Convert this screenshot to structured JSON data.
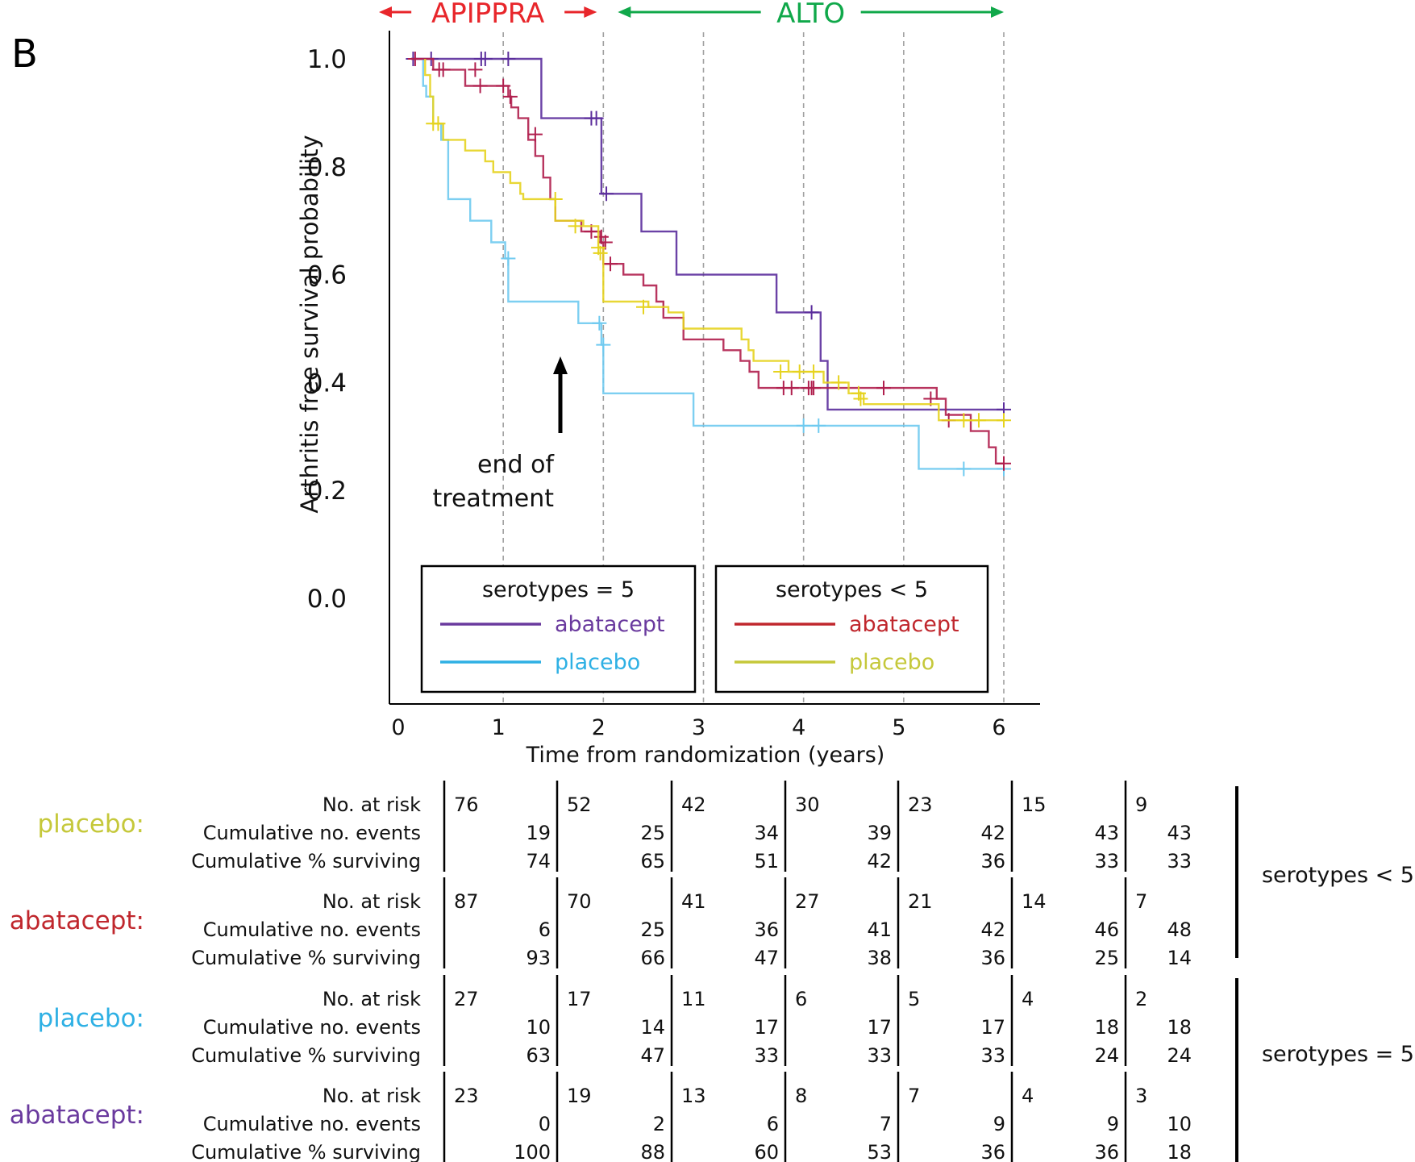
{
  "panel_label": "B",
  "study_spans": [
    {
      "label": "APIPPRA",
      "color": "#e8262b",
      "from": 0,
      "to": 2
    },
    {
      "label": "ALTO",
      "color": "#10a84a",
      "from": 2,
      "to": 6
    }
  ],
  "annotation": {
    "lines": [
      "end of",
      "treatment"
    ],
    "x": 1,
    "arrow_to_y": 0.52
  },
  "legends": [
    {
      "title": "serotypes = 5",
      "entries": [
        {
          "label": "abatacept",
          "color": "#6a3a9e"
        },
        {
          "label": "placebo",
          "color": "#2eb0e4"
        }
      ]
    },
    {
      "title": "serotypes < 5",
      "entries": [
        {
          "label": "abatacept",
          "color": "#c0272d"
        },
        {
          "label": "placebo",
          "color": "#c5c83a"
        }
      ]
    }
  ],
  "chart_data": {
    "type": "line",
    "subtype": "kaplan-meier-step",
    "title": "",
    "xlabel": "Time from randomization (years)",
    "ylabel": "Arthritis free survival probability",
    "xlim": [
      0,
      6
    ],
    "ylim": [
      0,
      1
    ],
    "xticks": [
      "0",
      "1",
      "2",
      "3",
      "4",
      "5",
      "6"
    ],
    "yticks": [
      "0.0",
      "0.2",
      "0.4",
      "0.6",
      "0.8",
      "1.0"
    ],
    "vertical_dashed_lines_at": [
      1,
      2,
      3,
      4,
      5,
      6
    ],
    "grid": false,
    "series": [
      {
        "name": "serotypes = 5 abatacept",
        "color": "#5b2d9c",
        "steps": [
          [
            0.08,
            1.0
          ],
          [
            1.38,
            1.0
          ],
          [
            1.38,
            0.89
          ],
          [
            1.98,
            0.89
          ],
          [
            1.98,
            0.75
          ],
          [
            2.38,
            0.75
          ],
          [
            2.38,
            0.68
          ],
          [
            2.73,
            0.68
          ],
          [
            2.73,
            0.6
          ],
          [
            3.73,
            0.6
          ],
          [
            3.73,
            0.53
          ],
          [
            4.17,
            0.53
          ],
          [
            4.17,
            0.44
          ],
          [
            4.24,
            0.44
          ],
          [
            4.24,
            0.35
          ],
          [
            6.0,
            0.35
          ]
        ],
        "censor": [
          [
            0.1,
            1.0
          ],
          [
            0.28,
            1.0
          ],
          [
            0.78,
            1.0
          ],
          [
            0.82,
            1.0
          ],
          [
            1.05,
            1.0
          ],
          [
            1.88,
            0.89
          ],
          [
            1.93,
            0.89
          ],
          [
            2.03,
            0.75
          ],
          [
            4.08,
            0.53
          ],
          [
            6.0,
            0.35
          ]
        ]
      },
      {
        "name": "serotypes = 5 placebo",
        "color": "#6fcaf0",
        "steps": [
          [
            0.2,
            1.0
          ],
          [
            0.2,
            0.95
          ],
          [
            0.23,
            0.95
          ],
          [
            0.23,
            0.93
          ],
          [
            0.3,
            0.93
          ],
          [
            0.3,
            0.88
          ],
          [
            0.38,
            0.88
          ],
          [
            0.38,
            0.85
          ],
          [
            0.45,
            0.85
          ],
          [
            0.45,
            0.74
          ],
          [
            0.67,
            0.74
          ],
          [
            0.67,
            0.7
          ],
          [
            0.88,
            0.7
          ],
          [
            0.88,
            0.66
          ],
          [
            1.02,
            0.66
          ],
          [
            1.02,
            0.63
          ],
          [
            1.05,
            0.63
          ],
          [
            1.05,
            0.55
          ],
          [
            1.75,
            0.55
          ],
          [
            1.75,
            0.51
          ],
          [
            1.98,
            0.51
          ],
          [
            1.98,
            0.47
          ],
          [
            2.0,
            0.47
          ],
          [
            2.0,
            0.38
          ],
          [
            2.9,
            0.38
          ],
          [
            2.9,
            0.32
          ],
          [
            5.15,
            0.32
          ],
          [
            5.15,
            0.24
          ],
          [
            6.0,
            0.24
          ]
        ],
        "censor": [
          [
            1.05,
            0.63
          ],
          [
            1.96,
            0.51
          ],
          [
            2.0,
            0.47
          ],
          [
            4.0,
            0.32
          ],
          [
            4.15,
            0.32
          ],
          [
            5.6,
            0.24
          ],
          [
            6.0,
            0.24
          ]
        ]
      },
      {
        "name": "serotypes < 5 abatacept",
        "color": "#b01f4e",
        "steps": [
          [
            0.08,
            1.0
          ],
          [
            0.3,
            1.0
          ],
          [
            0.3,
            0.98
          ],
          [
            0.62,
            0.98
          ],
          [
            0.62,
            0.95
          ],
          [
            1.05,
            0.95
          ],
          [
            1.05,
            0.93
          ],
          [
            1.08,
            0.93
          ],
          [
            1.08,
            0.91
          ],
          [
            1.15,
            0.91
          ],
          [
            1.15,
            0.89
          ],
          [
            1.25,
            0.89
          ],
          [
            1.25,
            0.85
          ],
          [
            1.32,
            0.85
          ],
          [
            1.32,
            0.82
          ],
          [
            1.4,
            0.82
          ],
          [
            1.4,
            0.78
          ],
          [
            1.47,
            0.78
          ],
          [
            1.47,
            0.74
          ],
          [
            1.52,
            0.74
          ],
          [
            1.52,
            0.7
          ],
          [
            1.78,
            0.7
          ],
          [
            1.78,
            0.68
          ],
          [
            1.97,
            0.68
          ],
          [
            1.97,
            0.66
          ],
          [
            2.0,
            0.66
          ],
          [
            2.0,
            0.62
          ],
          [
            2.2,
            0.62
          ],
          [
            2.2,
            0.6
          ],
          [
            2.4,
            0.6
          ],
          [
            2.4,
            0.58
          ],
          [
            2.53,
            0.58
          ],
          [
            2.53,
            0.55
          ],
          [
            2.6,
            0.55
          ],
          [
            2.6,
            0.52
          ],
          [
            2.8,
            0.52
          ],
          [
            2.8,
            0.48
          ],
          [
            3.2,
            0.48
          ],
          [
            3.2,
            0.46
          ],
          [
            3.37,
            0.46
          ],
          [
            3.37,
            0.44
          ],
          [
            3.46,
            0.44
          ],
          [
            3.46,
            0.42
          ],
          [
            3.55,
            0.42
          ],
          [
            3.55,
            0.39
          ],
          [
            5.33,
            0.39
          ],
          [
            5.33,
            0.37
          ],
          [
            5.42,
            0.37
          ],
          [
            5.42,
            0.34
          ],
          [
            5.67,
            0.34
          ],
          [
            5.67,
            0.31
          ],
          [
            5.85,
            0.31
          ],
          [
            5.85,
            0.28
          ],
          [
            5.92,
            0.28
          ],
          [
            5.92,
            0.25
          ],
          [
            6.0,
            0.25
          ]
        ],
        "censor": [
          [
            0.12,
            1.0
          ],
          [
            0.36,
            0.98
          ],
          [
            0.4,
            0.98
          ],
          [
            0.72,
            0.98
          ],
          [
            0.77,
            0.95
          ],
          [
            1.0,
            0.95
          ],
          [
            1.07,
            0.93
          ],
          [
            1.32,
            0.86
          ],
          [
            1.88,
            0.68
          ],
          [
            1.98,
            0.67
          ],
          [
            2.02,
            0.66
          ],
          [
            2.07,
            0.62
          ],
          [
            3.8,
            0.39
          ],
          [
            3.88,
            0.39
          ],
          [
            4.05,
            0.39
          ],
          [
            4.08,
            0.39
          ],
          [
            4.1,
            0.39
          ],
          [
            4.8,
            0.39
          ],
          [
            5.27,
            0.37
          ],
          [
            5.45,
            0.33
          ],
          [
            6.0,
            0.25
          ]
        ]
      },
      {
        "name": "serotypes < 5 placebo",
        "color": "#e6d31f",
        "steps": [
          [
            0.22,
            1.0
          ],
          [
            0.22,
            0.97
          ],
          [
            0.27,
            0.97
          ],
          [
            0.27,
            0.93
          ],
          [
            0.3,
            0.93
          ],
          [
            0.3,
            0.88
          ],
          [
            0.4,
            0.88
          ],
          [
            0.4,
            0.85
          ],
          [
            0.62,
            0.85
          ],
          [
            0.62,
            0.83
          ],
          [
            0.82,
            0.83
          ],
          [
            0.82,
            0.81
          ],
          [
            0.9,
            0.81
          ],
          [
            0.9,
            0.79
          ],
          [
            1.07,
            0.79
          ],
          [
            1.07,
            0.77
          ],
          [
            1.17,
            0.77
          ],
          [
            1.17,
            0.75
          ],
          [
            1.2,
            0.75
          ],
          [
            1.2,
            0.74
          ],
          [
            1.52,
            0.74
          ],
          [
            1.52,
            0.7
          ],
          [
            1.8,
            0.7
          ],
          [
            1.8,
            0.69
          ],
          [
            1.95,
            0.69
          ],
          [
            1.95,
            0.65
          ],
          [
            2.0,
            0.65
          ],
          [
            2.0,
            0.55
          ],
          [
            2.45,
            0.55
          ],
          [
            2.45,
            0.54
          ],
          [
            2.65,
            0.54
          ],
          [
            2.65,
            0.53
          ],
          [
            2.8,
            0.53
          ],
          [
            2.8,
            0.5
          ],
          [
            3.38,
            0.5
          ],
          [
            3.38,
            0.48
          ],
          [
            3.45,
            0.48
          ],
          [
            3.45,
            0.46
          ],
          [
            3.5,
            0.46
          ],
          [
            3.5,
            0.44
          ],
          [
            3.85,
            0.44
          ],
          [
            3.85,
            0.42
          ],
          [
            4.2,
            0.42
          ],
          [
            4.2,
            0.4
          ],
          [
            4.45,
            0.4
          ],
          [
            4.45,
            0.38
          ],
          [
            4.6,
            0.38
          ],
          [
            4.6,
            0.36
          ],
          [
            5.35,
            0.36
          ],
          [
            5.35,
            0.33
          ],
          [
            6.0,
            0.33
          ]
        ],
        "censor": [
          [
            0.3,
            0.88
          ],
          [
            0.35,
            0.88
          ],
          [
            1.52,
            0.74
          ],
          [
            1.72,
            0.69
          ],
          [
            1.95,
            0.65
          ],
          [
            1.97,
            0.64
          ],
          [
            2.4,
            0.54
          ],
          [
            3.77,
            0.42
          ],
          [
            3.96,
            0.42
          ],
          [
            4.1,
            0.42
          ],
          [
            4.35,
            0.4
          ],
          [
            4.55,
            0.38
          ],
          [
            4.57,
            0.37
          ],
          [
            5.6,
            0.33
          ],
          [
            5.75,
            0.33
          ],
          [
            6.0,
            0.33
          ]
        ]
      }
    ]
  },
  "risk_table": {
    "row_labels": [
      "No. at risk",
      "Cumulative no. events",
      "Cumulative % surviving"
    ],
    "groups": [
      {
        "arm": "placebo:",
        "arm_color": "#c5c83a",
        "subgroup": "serotypes < 5",
        "at_risk": [
          "76",
          "52",
          "42",
          "30",
          "23",
          "15",
          "9"
        ],
        "events": [
          "19",
          "25",
          "34",
          "39",
          "42",
          "43",
          "43"
        ],
        "surviving": [
          "74",
          "65",
          "51",
          "42",
          "36",
          "33",
          "33"
        ]
      },
      {
        "arm": "abatacept:",
        "arm_color": "#c0272d",
        "subgroup": "serotypes < 5",
        "at_risk": [
          "87",
          "70",
          "41",
          "27",
          "21",
          "14",
          "7"
        ],
        "events": [
          "6",
          "25",
          "36",
          "41",
          "42",
          "46",
          "48"
        ],
        "surviving": [
          "93",
          "66",
          "47",
          "38",
          "36",
          "25",
          "14"
        ]
      },
      {
        "arm": "placebo:",
        "arm_color": "#2eb0e4",
        "subgroup": "serotypes = 5",
        "at_risk": [
          "27",
          "17",
          "11",
          "6",
          "5",
          "4",
          "2"
        ],
        "events": [
          "10",
          "14",
          "17",
          "17",
          "17",
          "18",
          "18"
        ],
        "surviving": [
          "63",
          "47",
          "33",
          "33",
          "33",
          "24",
          "24"
        ]
      },
      {
        "arm": "abatacept:",
        "arm_color": "#6a3a9e",
        "subgroup": "serotypes = 5",
        "at_risk": [
          "23",
          "19",
          "13",
          "8",
          "7",
          "4",
          "3"
        ],
        "events": [
          "0",
          "2",
          "6",
          "7",
          "9",
          "9",
          "10"
        ],
        "surviving": [
          "100",
          "88",
          "60",
          "53",
          "36",
          "36",
          "18"
        ]
      }
    ],
    "bracket_labels": [
      "serotypes < 5",
      "serotypes = 5"
    ]
  }
}
